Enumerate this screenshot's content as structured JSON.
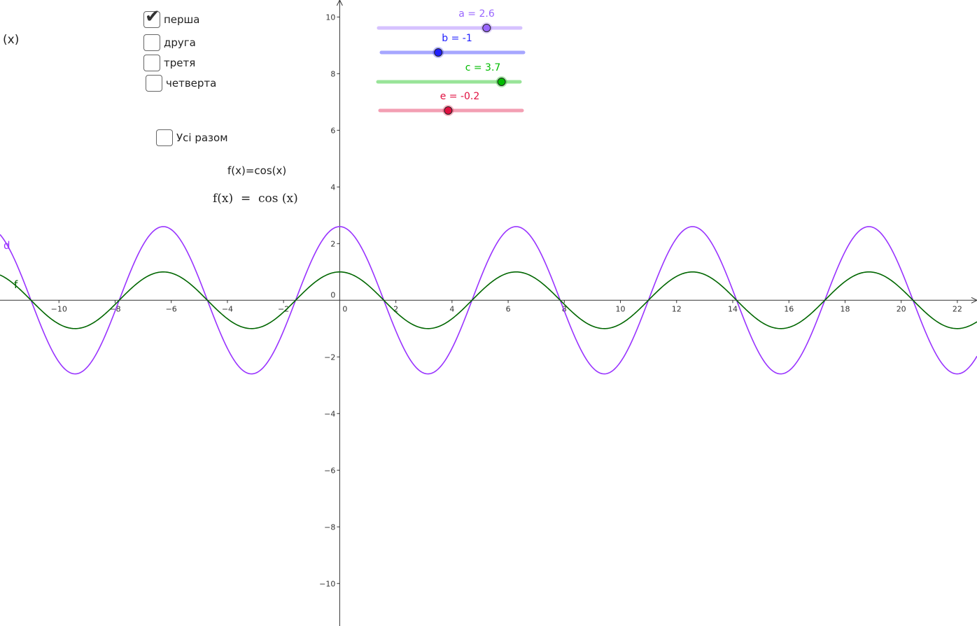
{
  "left_edge_text": "(x)",
  "checkboxes": [
    {
      "label": "перша",
      "checked": true
    },
    {
      "label": "друга",
      "checked": false
    },
    {
      "label": "третя",
      "checked": false
    },
    {
      "label": "четверта",
      "checked": false
    }
  ],
  "all_together": {
    "label": "Усі разом",
    "checked": false
  },
  "text_formula": "f(x)=cos(x)",
  "latex_formula": "f(x)  =  cos (x)",
  "sliders": [
    {
      "name": "a",
      "label": "a = 2.6",
      "value": 2.6,
      "min": -5,
      "max": 5,
      "color": "#9966ff"
    },
    {
      "name": "b",
      "label": "b = -1",
      "value": -1,
      "min": -5,
      "max": 5,
      "color": "#2020ff"
    },
    {
      "name": "c",
      "label": "c = 3.7",
      "value": 3.7,
      "min": -5,
      "max": 5,
      "color": "#00bb00"
    },
    {
      "name": "e",
      "label": "e = -0.2",
      "value": -0.2,
      "min": -5,
      "max": 5,
      "color": "#e01040"
    }
  ],
  "functions": [
    {
      "name": "d",
      "label": "d",
      "color": "#9933ff",
      "amplitude": 2.6
    },
    {
      "name": "f",
      "label": "f",
      "color": "#006600",
      "amplitude": 1
    }
  ],
  "axes": {
    "x_ticks": [
      "−10",
      "−8",
      "−6",
      "−4",
      "−2",
      "0",
      "2",
      "4",
      "6",
      "8",
      "10",
      "12",
      "14",
      "16",
      "18",
      "20",
      "22"
    ],
    "y_ticks": [
      "10",
      "8",
      "6",
      "4",
      "2",
      "0",
      "−2",
      "−4",
      "−6",
      "−8",
      "−10"
    ],
    "x_range": [
      -12.1,
      22.7
    ],
    "y_range": [
      -11.5,
      10.6
    ]
  }
}
